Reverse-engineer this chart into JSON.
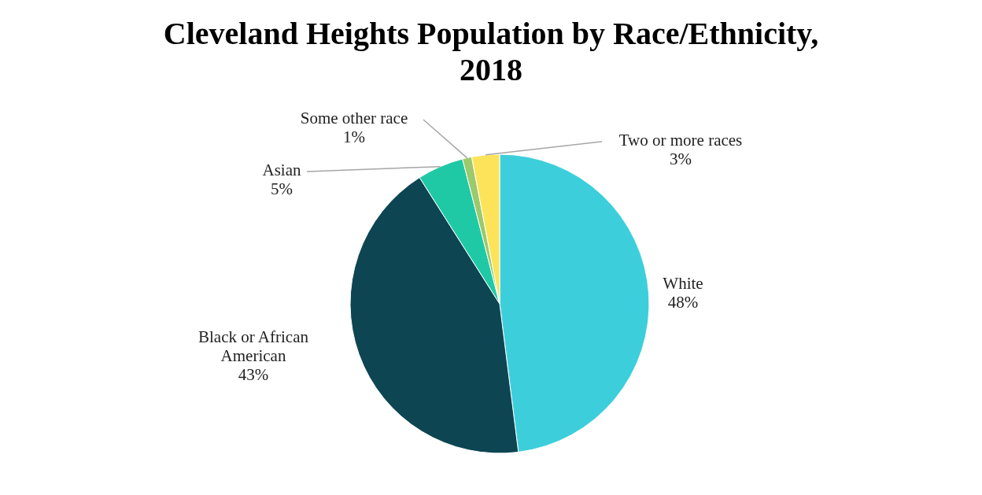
{
  "chart_data": {
    "type": "pie",
    "title": "Cleveland Heights Population by Race/Ethnicity, 2018",
    "categories": [
      "White",
      "Black or African American",
      "Asian",
      "Some other race",
      "Two or more races"
    ],
    "values": [
      48,
      43,
      5,
      1,
      3
    ],
    "value_labels": [
      "48%",
      "43%",
      "5%",
      "1%",
      "3%"
    ],
    "colors": [
      "#3ccfdb",
      "#0d4652",
      "#20c9a6",
      "#9cc96b",
      "#fce35a"
    ],
    "legend": false
  }
}
